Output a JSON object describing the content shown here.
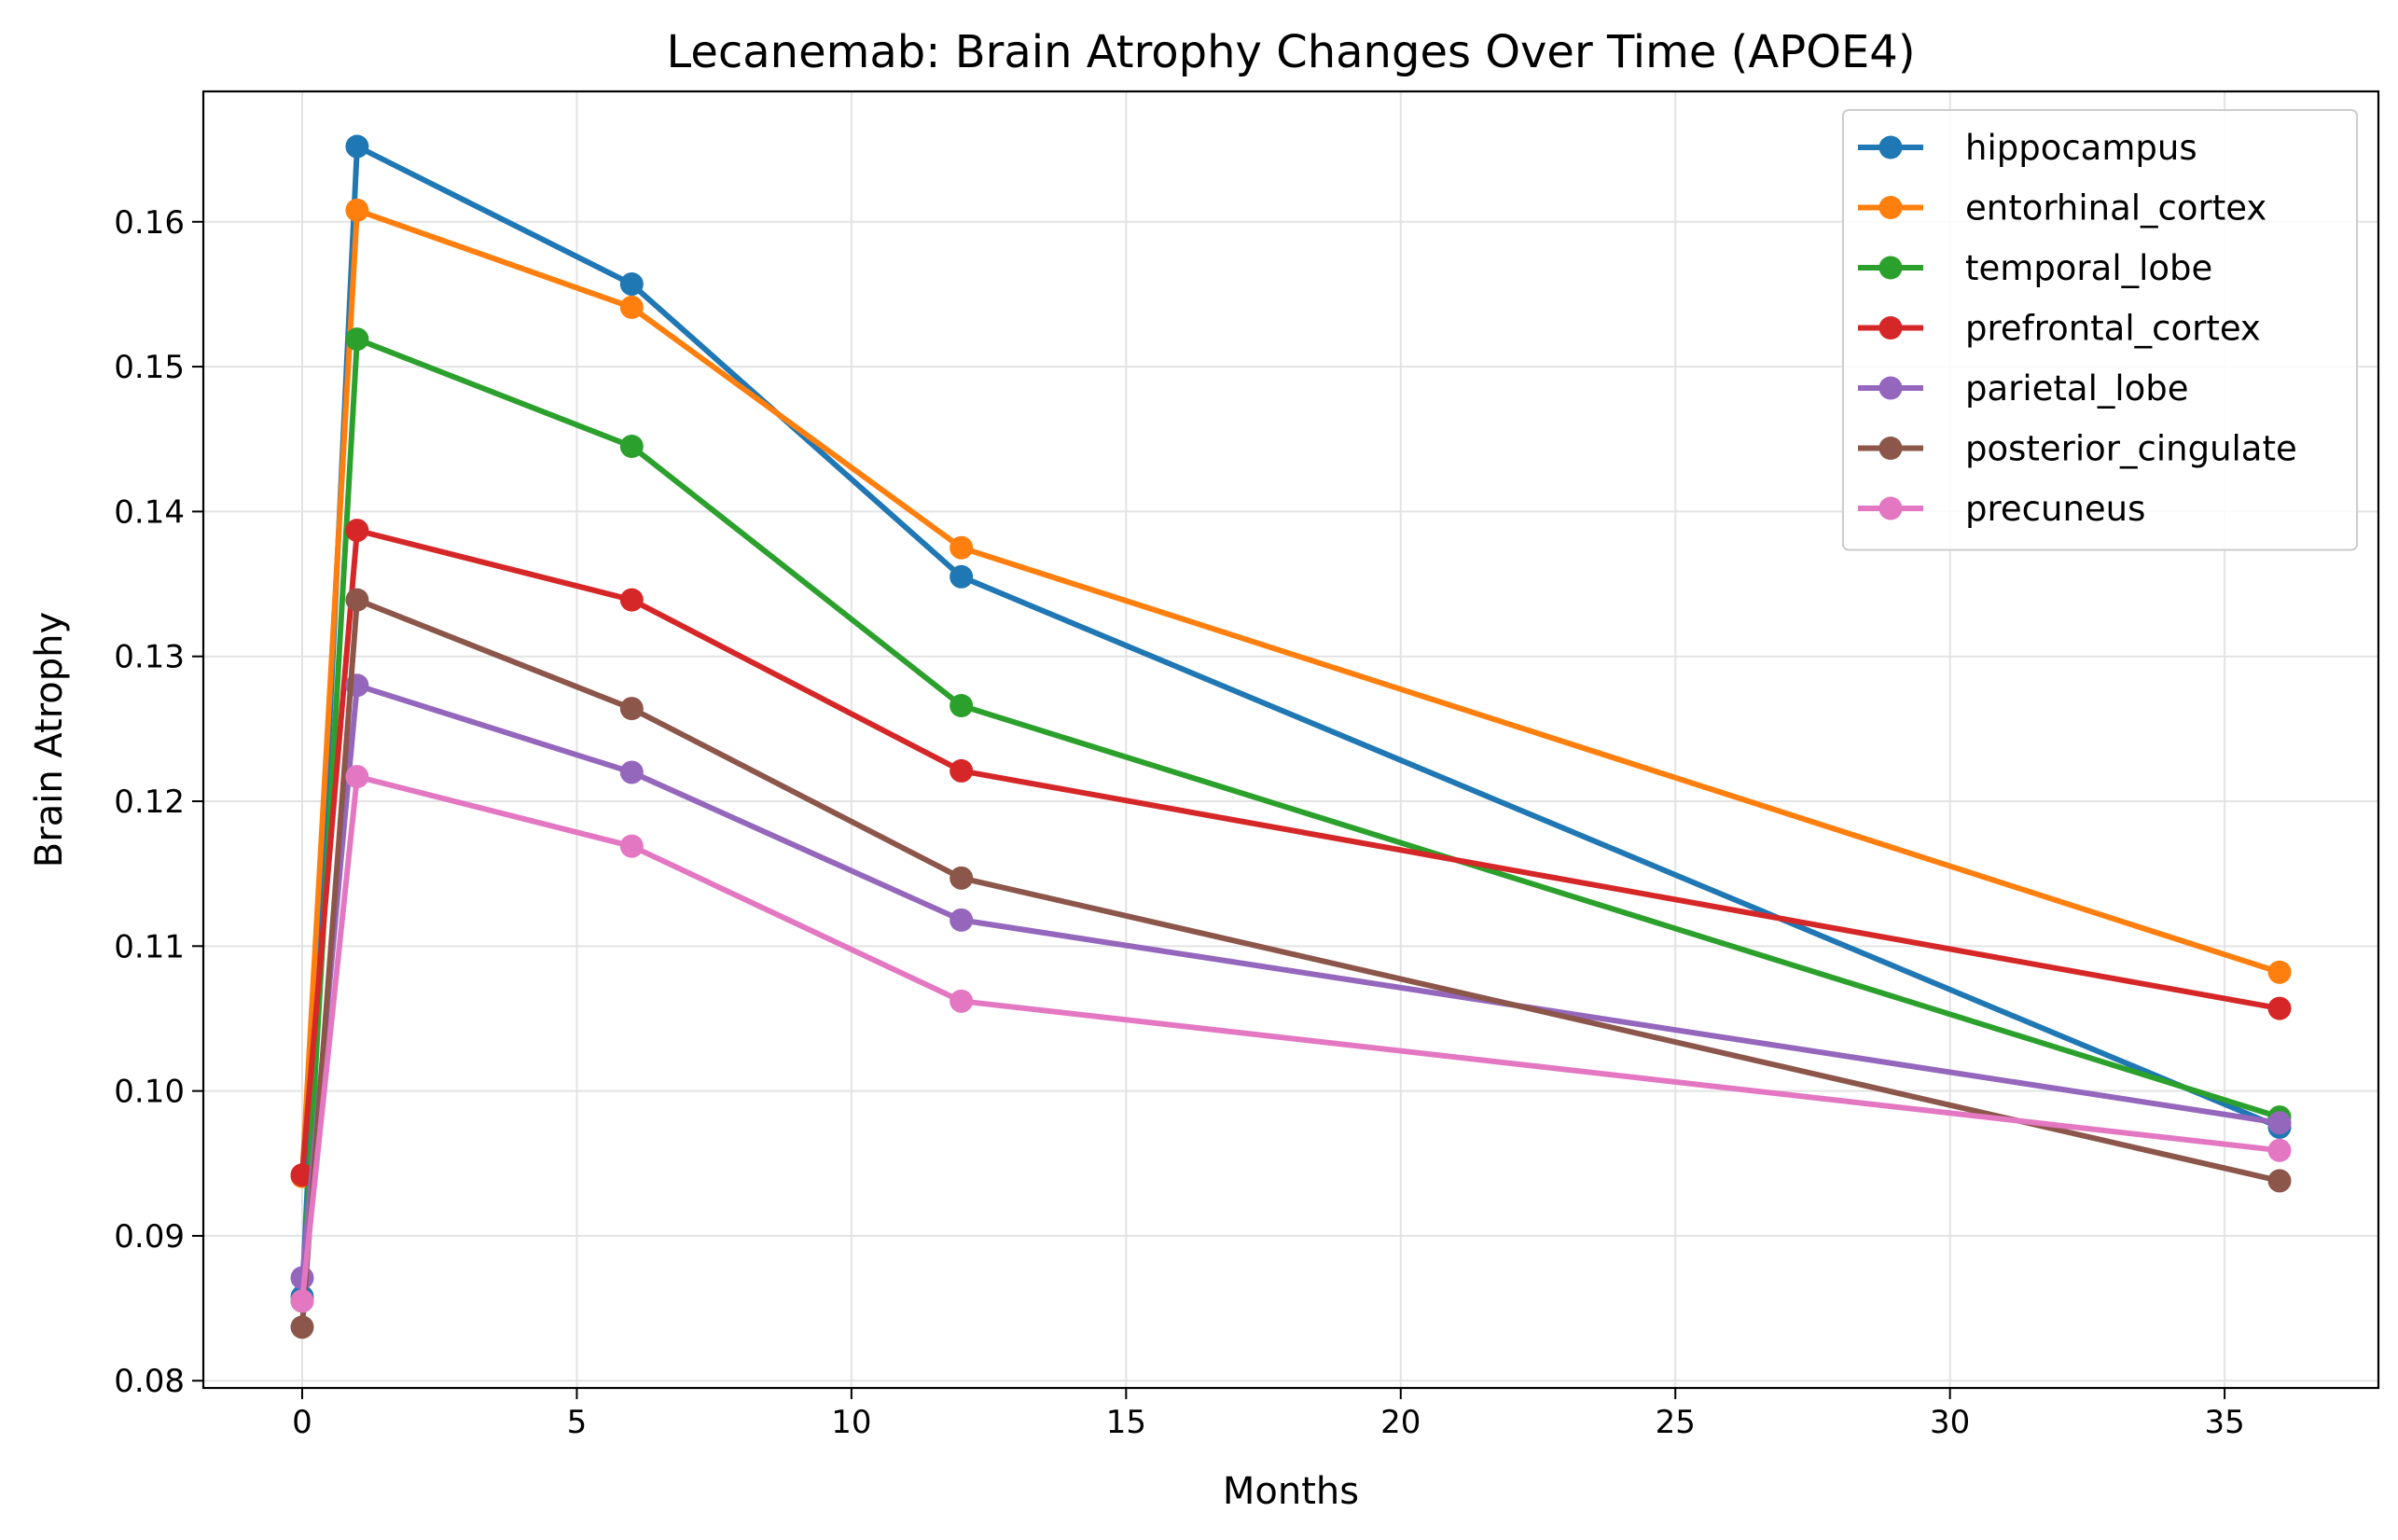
{
  "chart_data": {
    "type": "line",
    "title": "Lecanemab: Brain Atrophy Changes Over Time (APOE4)",
    "xlabel": "Months",
    "ylabel": "Brain Atrophy",
    "x": [
      0,
      1,
      6,
      12,
      36
    ],
    "xlim": [
      -1.8,
      37.8
    ],
    "ylim": [
      0.0795,
      0.169
    ],
    "xticks": [
      0,
      5,
      10,
      15,
      20,
      25,
      30,
      35
    ],
    "xtick_labels": [
      "0",
      "5",
      "10",
      "15",
      "20",
      "25",
      "30",
      "35"
    ],
    "yticks": [
      0.08,
      0.09,
      0.1,
      0.11,
      0.12,
      0.13,
      0.14,
      0.15,
      0.16
    ],
    "ytick_labels": [
      "0.08",
      "0.09",
      "0.10",
      "0.11",
      "0.12",
      "0.13",
      "0.14",
      "0.15",
      "0.16"
    ],
    "grid": true,
    "legend_position": "top-right",
    "markers": "circle",
    "series": [
      {
        "name": "hippocampus",
        "color": "#1f77b4",
        "values": [
          0.0858,
          0.1652,
          0.1557,
          0.1355,
          0.0975
        ]
      },
      {
        "name": "entorhinal_cortex",
        "color": "#ff7f0e",
        "values": [
          0.0941,
          0.1608,
          0.1541,
          0.1375,
          0.1082
        ]
      },
      {
        "name": "temporal_lobe",
        "color": "#2ca02c",
        "values": [
          0.0855,
          0.1519,
          0.1445,
          0.1266,
          0.0982
        ]
      },
      {
        "name": "prefrontal_cortex",
        "color": "#d62728",
        "values": [
          0.0942,
          0.1387,
          0.1339,
          0.1221,
          0.1057
        ]
      },
      {
        "name": "parietal_lobe",
        "color": "#9467bd",
        "values": [
          0.0871,
          0.128,
          0.122,
          0.1118,
          0.0978
        ]
      },
      {
        "name": "posterior_cingulate",
        "color": "#8c564b",
        "values": [
          0.0837,
          0.1339,
          0.1264,
          0.1147,
          0.0938
        ]
      },
      {
        "name": "precuneus",
        "color": "#e377c2",
        "values": [
          0.0855,
          0.1217,
          0.1169,
          0.1062,
          0.0959
        ]
      }
    ]
  }
}
